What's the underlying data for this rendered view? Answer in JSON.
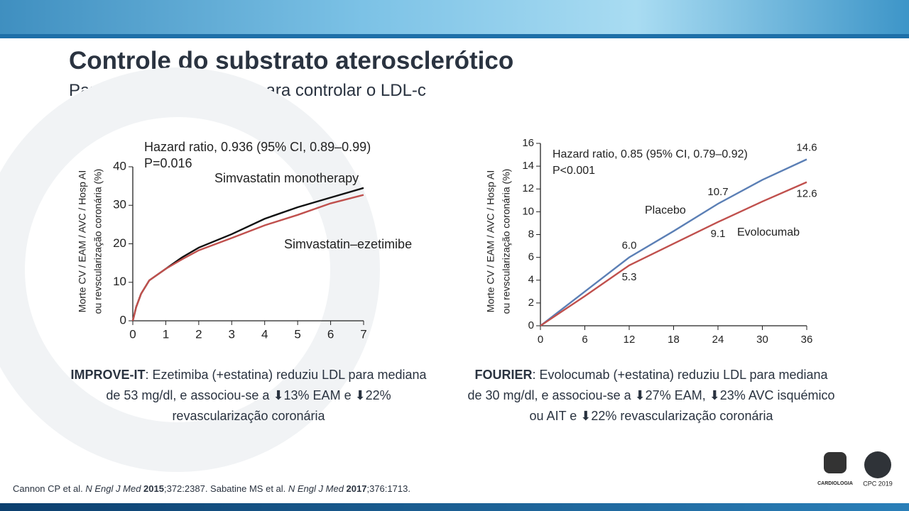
{
  "header": {
    "title": "Controle do substrato aterosclerótico",
    "subtitle": "Para além das estatinas para controlar o LDL-c"
  },
  "chart_data": [
    {
      "type": "line",
      "ylabel": [
        "Morte CV / EAM / AVC / Hosp AI",
        "ou revscularização coronária (%)"
      ],
      "annotations": [
        "Hazard ratio, 0.936 (95% CI, 0.89–0.99)",
        "P=0.016"
      ],
      "x": [
        0,
        0.1,
        0.25,
        0.5,
        1,
        1.5,
        2,
        3,
        4,
        5,
        6,
        7
      ],
      "xlim": [
        0,
        7
      ],
      "xticks": [
        0,
        1,
        2,
        3,
        4,
        5,
        6,
        7
      ],
      "ylim": [
        0,
        40
      ],
      "yticks": [
        0,
        10,
        20,
        30,
        40
      ],
      "series": [
        {
          "name": "Simvastatin monotherapy",
          "color": "#111111",
          "values": [
            0,
            3.5,
            7,
            10.5,
            13.5,
            16.5,
            19,
            22.5,
            26.5,
            29.5,
            32,
            34.5
          ]
        },
        {
          "name": "Simvastatin–ezetimibe",
          "color": "#c0504d",
          "values": [
            0,
            3.5,
            7,
            10.5,
            13.5,
            16,
            18.3,
            21.5,
            24.8,
            27.5,
            30.5,
            32.7
          ]
        }
      ]
    },
    {
      "type": "line",
      "ylabel": [
        "Morte CV / EAM / AVC / Hosp AI",
        "ou revscularização coronária (%)"
      ],
      "annotations": [
        "Hazard ratio, 0.85 (95% CI, 0.79–0.92)",
        "P<0.001"
      ],
      "x": [
        0,
        6,
        12,
        18,
        24,
        30,
        36
      ],
      "xlim": [
        0,
        36
      ],
      "xticks": [
        0,
        6,
        12,
        18,
        24,
        30,
        36
      ],
      "ylim": [
        0,
        16
      ],
      "yticks": [
        0,
        2,
        4,
        6,
        8,
        10,
        12,
        14,
        16
      ],
      "series": [
        {
          "name": "Placebo",
          "color": "#5b7fb5",
          "values": [
            0,
            3.0,
            6.0,
            8.3,
            10.7,
            12.8,
            14.6
          ],
          "value_labels": [
            null,
            null,
            "6.0",
            null,
            "10.7",
            null,
            "14.6"
          ]
        },
        {
          "name": "Evolocumab",
          "color": "#c0504d",
          "values": [
            0,
            2.6,
            5.3,
            7.2,
            9.1,
            10.9,
            12.6
          ],
          "value_labels": [
            null,
            null,
            "5.3",
            null,
            "9.1",
            null,
            "12.6"
          ]
        }
      ]
    }
  ],
  "captions": [
    {
      "bold": "IMPROVE-IT",
      "text": ": Ezetimiba (+estatina) reduziu LDL para mediana de 53 mg/dl, e associou-se a ⬇13% EAM e ⬇22% revascularização coronária"
    },
    {
      "bold": "FOURIER",
      "text": ": Evolocumab (+estatina) reduziu LDL para mediana de 30 mg/dl, e associou-se a ⬇27% EAM, ⬇23% AVC isquémico ou AIT e ⬇22% revascularização coronária"
    }
  ],
  "citation": [
    "Cannon CP et al. ",
    "N Engl J Med",
    " 2015",
    ";372:2387. Sabatine MS et al. ",
    "N Engl J Med",
    " 2017",
    ";376:1713."
  ],
  "logos": [
    "CARDIOLOGIA",
    "CPC 2019"
  ]
}
